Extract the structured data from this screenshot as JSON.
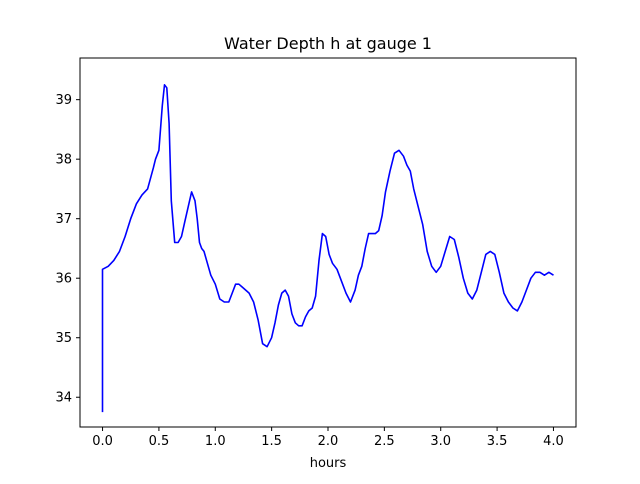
{
  "chart_data": {
    "type": "line",
    "title": "Water Depth h at gauge 1",
    "xlabel": "hours",
    "ylabel": "",
    "xlim": [
      -0.2,
      4.2
    ],
    "ylim": [
      33.5,
      39.7
    ],
    "grid": false,
    "x_ticks": [
      0.0,
      0.5,
      1.0,
      1.5,
      2.0,
      2.5,
      3.0,
      3.5,
      4.0
    ],
    "x_tick_labels": [
      "0.0",
      "0.5",
      "1.0",
      "1.5",
      "2.0",
      "2.5",
      "3.0",
      "3.5",
      "4.0"
    ],
    "y_ticks": [
      34,
      35,
      36,
      37,
      38,
      39
    ],
    "y_tick_labels": [
      "34",
      "35",
      "36",
      "37",
      "38",
      "39"
    ],
    "series": [
      {
        "color": "#0000ff",
        "x": [
          0.0,
          0.0,
          0.05,
          0.1,
          0.15,
          0.2,
          0.25,
          0.3,
          0.35,
          0.4,
          0.45,
          0.47,
          0.5,
          0.53,
          0.55,
          0.57,
          0.59,
          0.61,
          0.64,
          0.67,
          0.7,
          0.73,
          0.76,
          0.79,
          0.82,
          0.84,
          0.86,
          0.88,
          0.9,
          0.93,
          0.96,
          1.0,
          1.04,
          1.08,
          1.12,
          1.15,
          1.18,
          1.21,
          1.24,
          1.27,
          1.3,
          1.34,
          1.38,
          1.42,
          1.46,
          1.5,
          1.53,
          1.56,
          1.59,
          1.62,
          1.65,
          1.68,
          1.71,
          1.74,
          1.77,
          1.8,
          1.83,
          1.86,
          1.89,
          1.92,
          1.95,
          1.98,
          2.01,
          2.04,
          2.08,
          2.12,
          2.16,
          2.2,
          2.24,
          2.27,
          2.3,
          2.33,
          2.36,
          2.39,
          2.42,
          2.45,
          2.48,
          2.51,
          2.55,
          2.59,
          2.63,
          2.67,
          2.7,
          2.73,
          2.76,
          2.8,
          2.84,
          2.88,
          2.92,
          2.96,
          3.0,
          3.04,
          3.08,
          3.12,
          3.16,
          3.2,
          3.24,
          3.28,
          3.32,
          3.36,
          3.4,
          3.44,
          3.48,
          3.52,
          3.56,
          3.6,
          3.64,
          3.68,
          3.72,
          3.76,
          3.8,
          3.84,
          3.88,
          3.92,
          3.96,
          4.0
        ],
        "y": [
          33.75,
          36.15,
          36.2,
          36.3,
          36.45,
          36.7,
          37.0,
          37.25,
          37.4,
          37.5,
          37.85,
          38.0,
          38.15,
          38.9,
          39.25,
          39.2,
          38.6,
          37.3,
          36.6,
          36.6,
          36.7,
          36.95,
          37.2,
          37.45,
          37.3,
          37.0,
          36.6,
          36.5,
          36.45,
          36.25,
          36.05,
          35.9,
          35.65,
          35.6,
          35.6,
          35.75,
          35.9,
          35.9,
          35.85,
          35.8,
          35.75,
          35.6,
          35.3,
          34.9,
          34.85,
          35.0,
          35.25,
          35.55,
          35.75,
          35.8,
          35.7,
          35.4,
          35.25,
          35.2,
          35.2,
          35.35,
          35.45,
          35.5,
          35.7,
          36.3,
          36.75,
          36.7,
          36.4,
          36.25,
          36.15,
          35.95,
          35.75,
          35.6,
          35.8,
          36.05,
          36.2,
          36.5,
          36.75,
          36.75,
          36.75,
          36.8,
          37.05,
          37.45,
          37.8,
          38.1,
          38.15,
          38.05,
          37.9,
          37.8,
          37.5,
          37.2,
          36.9,
          36.45,
          36.2,
          36.1,
          36.2,
          36.45,
          36.7,
          36.65,
          36.35,
          36.0,
          35.75,
          35.65,
          35.8,
          36.1,
          36.4,
          36.45,
          36.4,
          36.1,
          35.75,
          35.6,
          35.5,
          35.45,
          35.6,
          35.8,
          36.0,
          36.1,
          36.1,
          36.05,
          36.1,
          36.05
        ]
      }
    ]
  }
}
